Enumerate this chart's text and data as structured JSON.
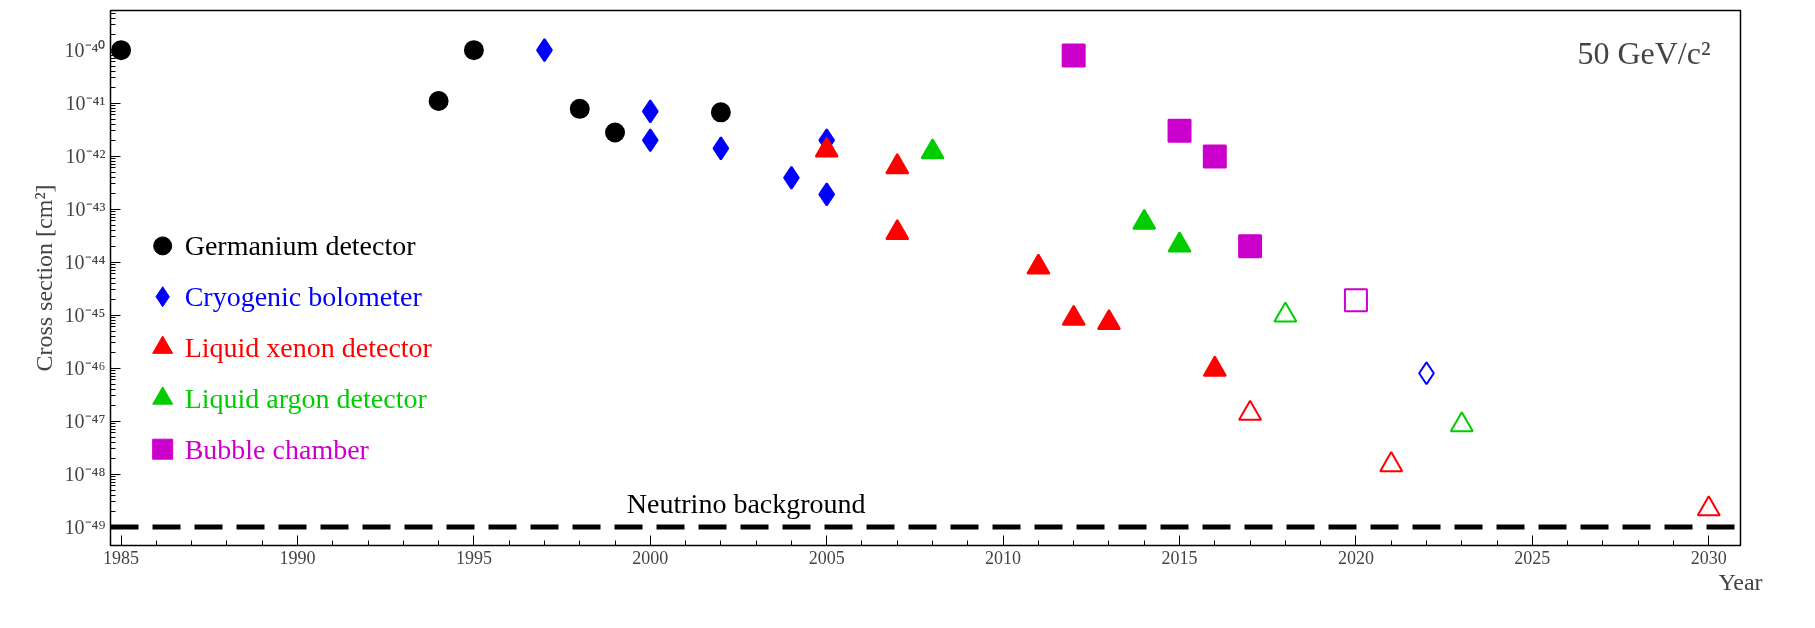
{
  "chart_data": {
    "type": "scatter",
    "xlabel": "Year",
    "ylabel": "Cross section [cm²]",
    "log": "y",
    "grid": false,
    "legend": "left",
    "xlim": [
      1984.7,
      2030.9
    ],
    "ylim": [
      4.5e-50,
      5.6e-40
    ],
    "xticks": [
      1985,
      1990,
      1995,
      2000,
      2005,
      2010,
      2015,
      2020,
      2025,
      2030
    ],
    "yticks": [
      {
        "value": 1e-49,
        "label": "10⁻⁴⁹"
      },
      {
        "value": 1e-48,
        "label": "10⁻⁴⁸"
      },
      {
        "value": 1e-47,
        "label": "10⁻⁴⁷"
      },
      {
        "value": 1e-46,
        "label": "10⁻⁴⁶"
      },
      {
        "value": 1e-45,
        "label": "10⁻⁴⁵"
      },
      {
        "value": 1e-44,
        "label": "10⁻⁴⁴"
      },
      {
        "value": 1e-43,
        "label": "10⁻⁴³"
      },
      {
        "value": 1e-42,
        "label": "10⁻⁴²"
      },
      {
        "value": 1e-41,
        "label": "10⁻⁴¹"
      },
      {
        "value": 1e-40,
        "label": "10⁻⁴⁰"
      }
    ],
    "ref_lines": [
      {
        "axis": "y",
        "value": 1e-49,
        "label": "Neutrino background",
        "color": "#000000",
        "line_style": "dashed"
      }
    ],
    "annotations": [
      "50 GeV/c²"
    ],
    "series": [
      {
        "name": "Germanium detector",
        "color": "#000000",
        "marker": "circle",
        "x": [
          1985,
          1994,
          1995,
          1998,
          1999,
          2002
        ],
        "values": [
          1e-40,
          1.1e-41,
          1e-40,
          7.8e-42,
          2.8e-42,
          6.7e-42
        ]
      },
      {
        "name": "Cryogenic bolometer",
        "color": "#0000ff",
        "marker": "diamond",
        "x": [
          1997,
          2000,
          2000,
          2002,
          2004,
          2005,
          2005
        ],
        "values": [
          1e-40,
          7e-42,
          2e-42,
          1.4e-42,
          3.9e-43,
          2e-42,
          1.9e-43
        ]
      },
      {
        "name": "Liquid xenon detector",
        "color": "#ff0000",
        "marker": "triangle",
        "x": [
          2005,
          2007,
          2007,
          2011,
          2012,
          2013,
          2016
        ],
        "values": [
          1.3e-42,
          6.3e-43,
          3.6e-44,
          8e-45,
          8.7e-46,
          7.2e-46,
          9.5e-47
        ]
      },
      {
        "name": "Liquid argon detector",
        "color": "#00cc00",
        "marker": "triangle",
        "x": [
          2008,
          2014,
          2015
        ],
        "values": [
          1.2e-42,
          5.6e-44,
          2.1e-44
        ]
      },
      {
        "name": "Bubble chamber",
        "color": "#cc00cc",
        "marker": "square",
        "x": [
          2012,
          2015,
          2016,
          2017
        ],
        "values": [
          7.9e-41,
          3e-42,
          9.8e-43,
          2e-44
        ]
      },
      {
        "color": "#0000ff",
        "marker": "diamond",
        "x": [
          2022
        ],
        "values": [
          8e-47
        ]
      },
      {
        "color": "#ff0000",
        "marker": "triangle",
        "x": [
          2017,
          2021,
          2030
        ],
        "values": [
          1.4e-47,
          1.5e-48,
          2.2e-49
        ]
      },
      {
        "color": "#00cc00",
        "marker": "triangle",
        "x": [
          2018,
          2023
        ],
        "values": [
          1e-45,
          8.5e-48
        ]
      },
      {
        "color": "#cc00cc",
        "marker": "square",
        "x": [
          2020
        ],
        "values": [
          1.9e-45
        ]
      }
    ]
  }
}
